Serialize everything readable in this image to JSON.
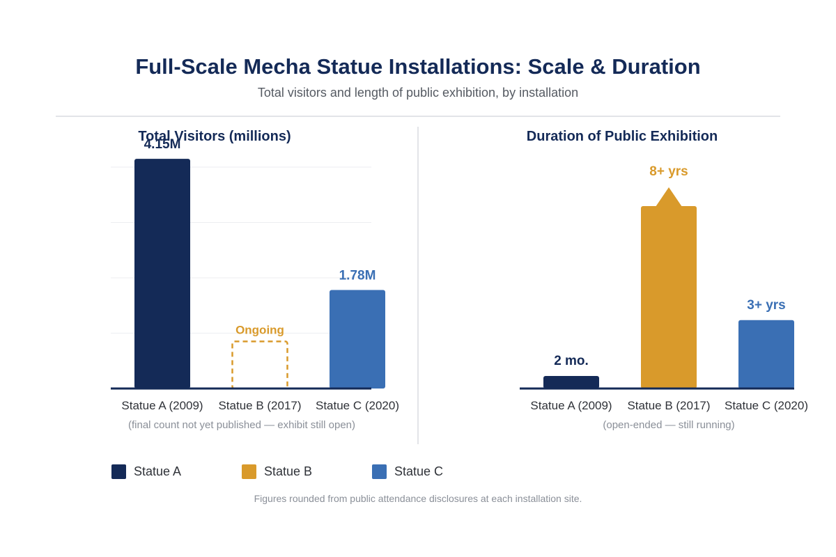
{
  "header": {
    "title": "Full-Scale Mecha Statue Installations: Scale & Duration",
    "subtitle": "Total visitors and length of public exhibition, by installation"
  },
  "colors": {
    "navy": "#142a57",
    "gold": "#d99a2b",
    "blue": "#3a6fb4",
    "axis": "#142a57",
    "grid": "#eceef1",
    "category_text": "#2f3238",
    "note_text": "#8a8f98"
  },
  "chart_data": [
    {
      "type": "bar",
      "title": "Total Visitors (millions)",
      "categories": [
        "Statue A (2009)",
        "Statue B (2017)",
        "Statue C (2020)"
      ],
      "values": [
        4.15,
        null,
        1.78
      ],
      "data_labels": [
        "4.15M",
        "Ongoing",
        "1.78M"
      ],
      "bar_colors": [
        "#142a57",
        "#d99a2b",
        "#3a6fb4"
      ],
      "label_colors": [
        "#142a57",
        "#d99a2b",
        "#3a6fb4"
      ],
      "placeholder_value": 0.85,
      "ylim": [
        0,
        4.0
      ],
      "grid": true,
      "note": "(final count not yet published — exhibit still open)"
    },
    {
      "type": "bar",
      "title": "Duration of Public Exhibition",
      "categories": [
        "Statue A (2009)",
        "Statue B (2017)",
        "Statue C (2020)"
      ],
      "values": [
        2,
        96,
        36
      ],
      "value_unit": "months",
      "open_ended": [
        false,
        true,
        true
      ],
      "data_labels": [
        "2 mo.",
        "8+ yrs",
        "3+ yrs"
      ],
      "bar_colors": [
        "#142a57",
        "#d99a2b",
        "#3a6fb4"
      ],
      "label_colors": [
        "#142a57",
        "#d99a2b",
        "#3a6fb4"
      ],
      "grid": false,
      "note": "(open-ended — still running)"
    }
  ],
  "legend": [
    {
      "label": "Statue A",
      "color": "#142a57"
    },
    {
      "label": "Statue B",
      "color": "#d99a2b"
    },
    {
      "label": "Statue C",
      "color": "#3a6fb4"
    }
  ],
  "footnote": "Figures rounded from public attendance disclosures at each installation site."
}
